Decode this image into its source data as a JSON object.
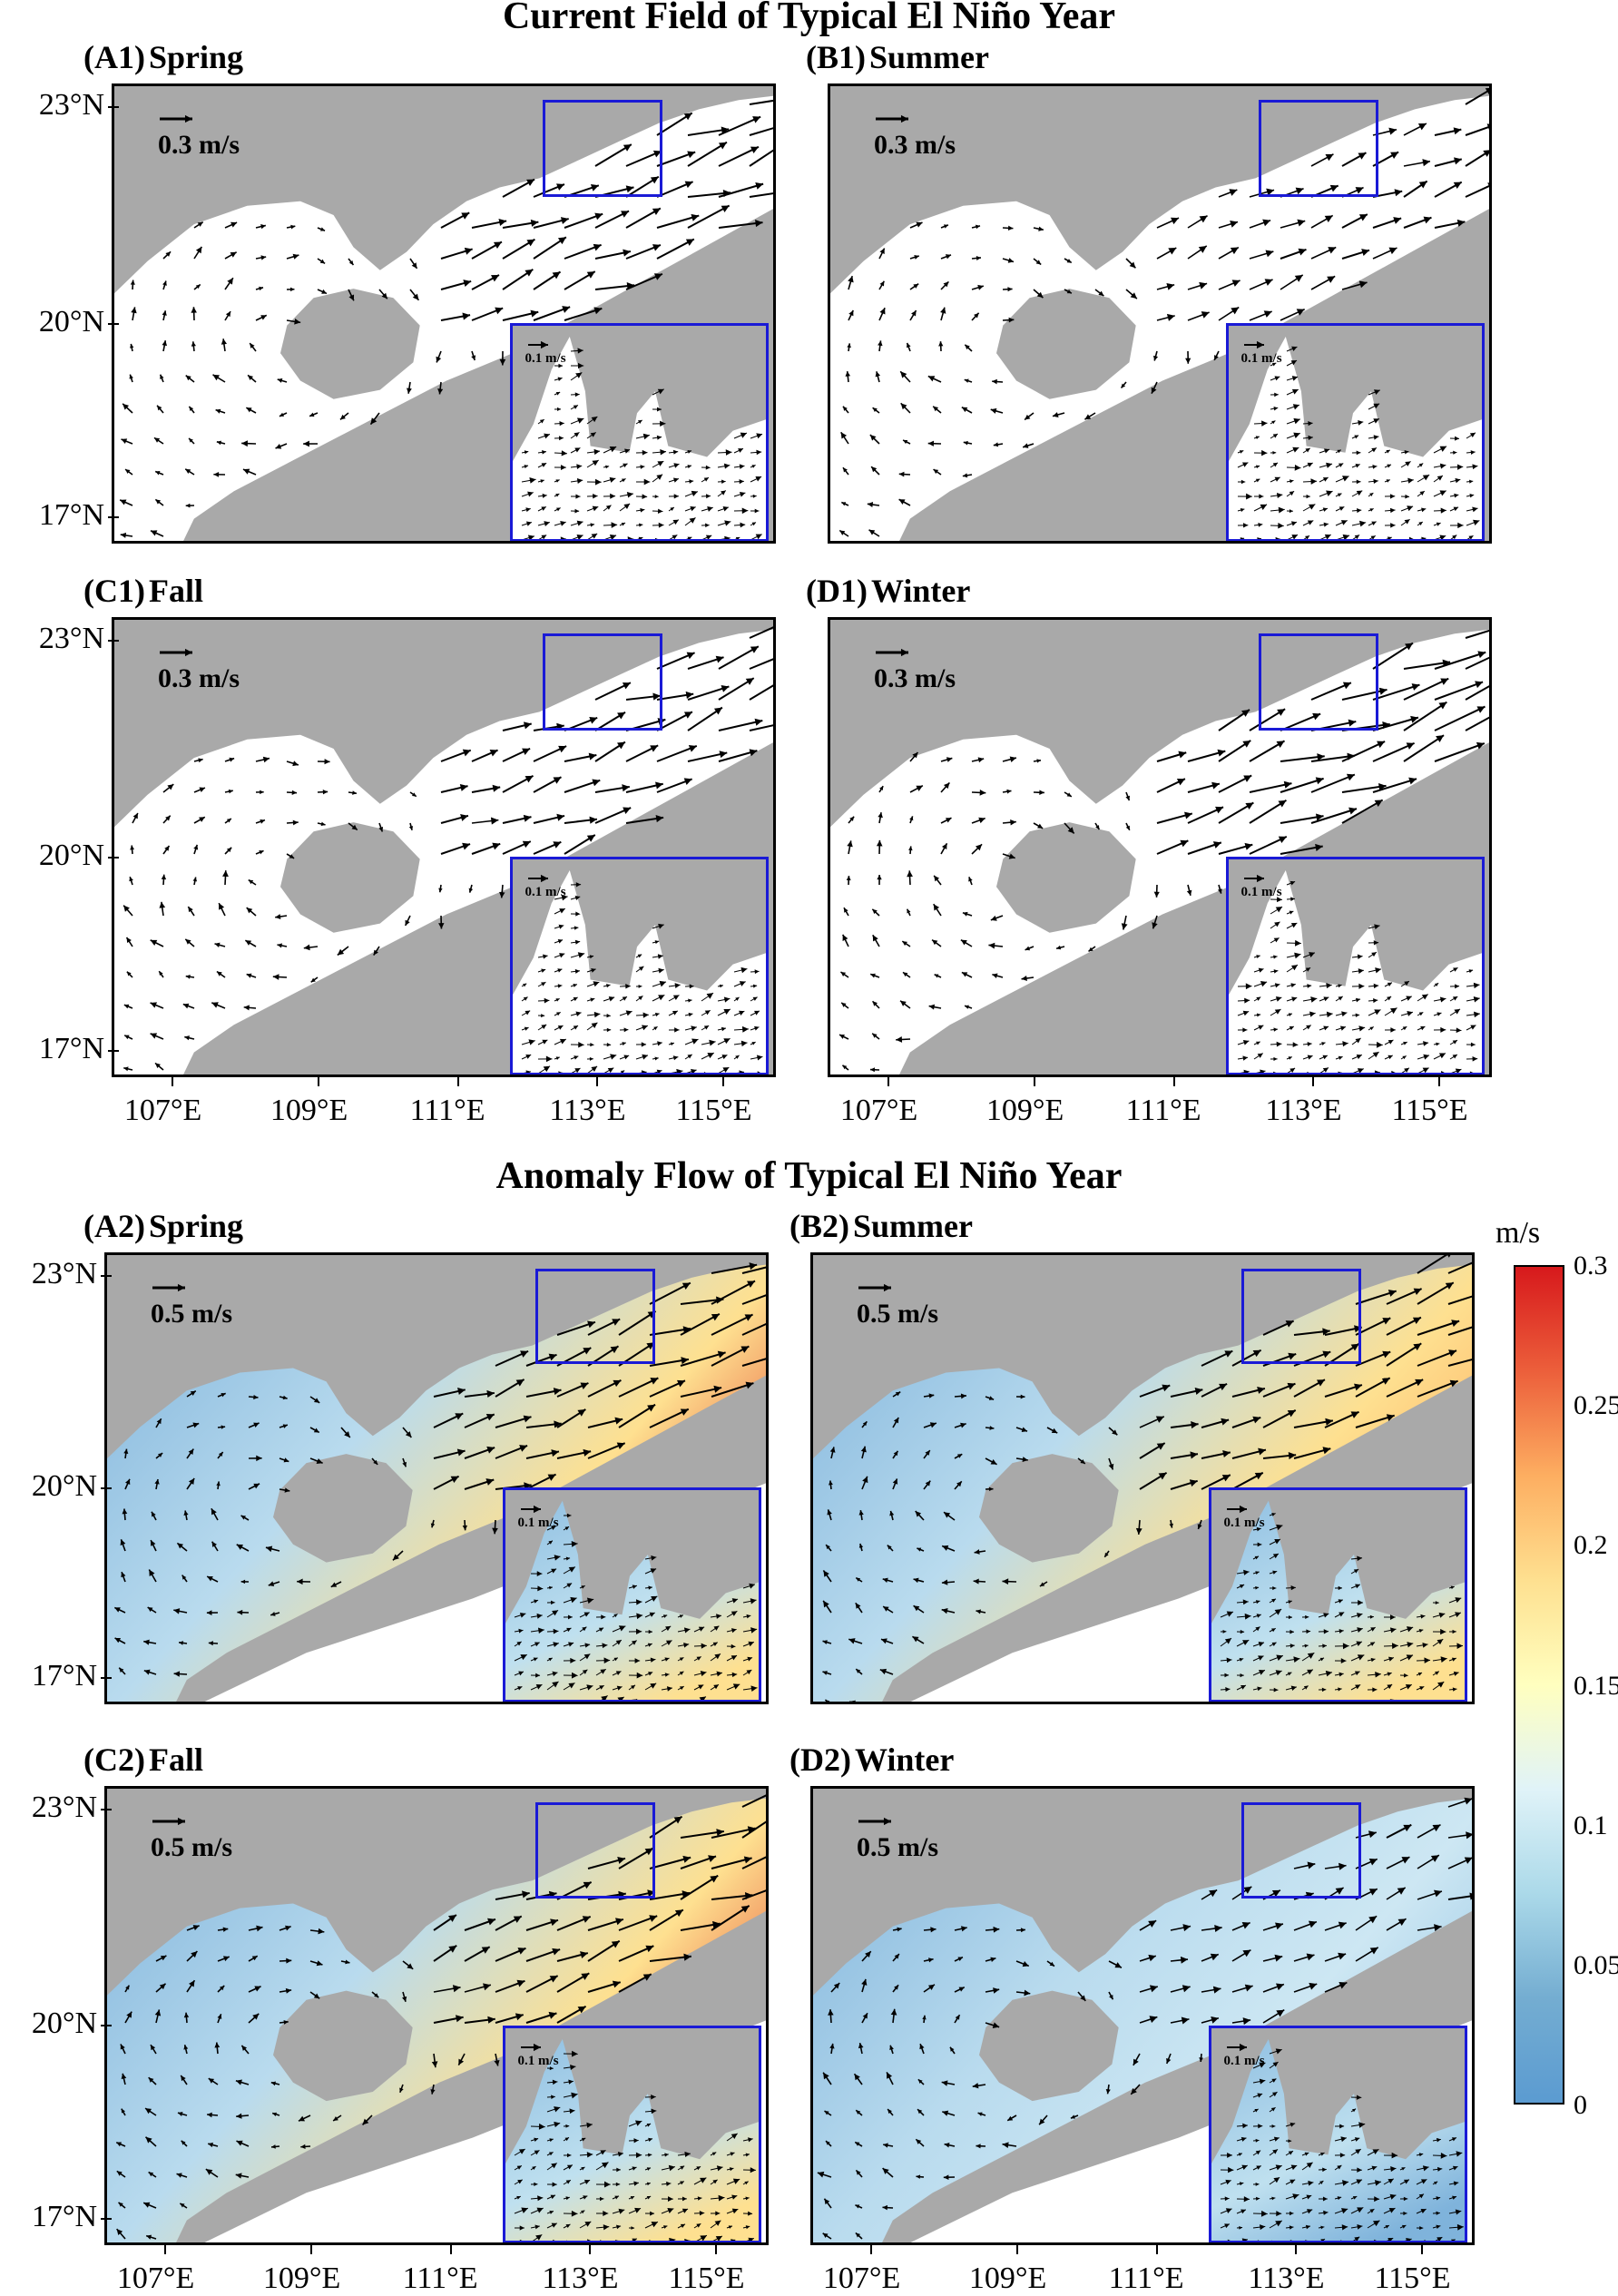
{
  "figure": {
    "top_title": "Current Field of  Typical El Niño Year",
    "bottom_title": "Anomaly Flow of Typical El Niño Year",
    "lat_labels": [
      "23°N",
      "20°N",
      "17°N"
    ],
    "lon_labels": [
      "107°E",
      "109°E",
      "111°E",
      "113°E",
      "115°E"
    ],
    "colorbar": {
      "unit": "m/s",
      "ticks": [
        "0.3",
        "0.25",
        "0.2",
        "0.15",
        "0.1",
        "0.05",
        "0"
      ],
      "colors": [
        "#d7191c",
        "#ec5f3b",
        "#fdae61",
        "#fee090",
        "#ffffbf",
        "#e0f3f8",
        "#abd9e9",
        "#74add1",
        "#5b9bd1"
      ]
    }
  },
  "panels": [
    {
      "id": "A1",
      "label": "(A1)",
      "season": "Spring",
      "scale": "0.3 m/s",
      "inset_scale": "0.1 m/s",
      "type": "current"
    },
    {
      "id": "B1",
      "label": "(B1)",
      "season": "Summer",
      "scale": "0.3 m/s",
      "inset_scale": "0.1 m/s",
      "type": "current"
    },
    {
      "id": "C1",
      "label": "(C1)",
      "season": "Fall",
      "scale": "0.3 m/s",
      "inset_scale": "0.1 m/s",
      "type": "current"
    },
    {
      "id": "D1",
      "label": "(D1)",
      "season": "Winter",
      "scale": "0.3 m/s",
      "inset_scale": "0.1 m/s",
      "type": "current"
    },
    {
      "id": "A2",
      "label": "(A2)",
      "season": "Spring",
      "scale": "0.5 m/s",
      "inset_scale": "0.1 m/s",
      "type": "anomaly"
    },
    {
      "id": "B2",
      "label": "(B2)",
      "season": "Summer",
      "scale": "0.5 m/s",
      "inset_scale": "0.1 m/s",
      "type": "anomaly"
    },
    {
      "id": "C2",
      "label": "(C2)",
      "season": "Fall",
      "scale": "0.5 m/s",
      "inset_scale": "0.1 m/s",
      "type": "anomaly"
    },
    {
      "id": "D2",
      "label": "(D2)",
      "season": "Winter",
      "scale": "0.5 m/s",
      "inset_scale": "0.1 m/s",
      "type": "anomaly"
    }
  ]
}
